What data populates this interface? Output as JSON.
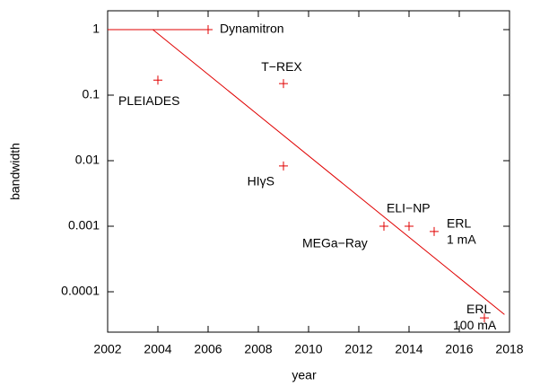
{
  "chart_data": {
    "type": "scatter",
    "x_label": "year",
    "y_label": "bandwidth",
    "log_y": true,
    "color": "#e00000",
    "xlim": [
      2002,
      2018
    ],
    "xticks": [
      2002,
      2004,
      2006,
      2008,
      2010,
      2012,
      2014,
      2016,
      2018
    ],
    "ylim": [
      2.42e-05,
      1.94
    ],
    "yticks": [
      1,
      0.1,
      0.01,
      0.001,
      0.0001
    ],
    "x": [
      2006,
      2004,
      2009,
      2009,
      2013,
      2014,
      2015,
      2017
    ],
    "values": [
      1,
      0.17,
      0.15,
      0.0083,
      0.001,
      0.001,
      0.00083,
      4e-05
    ],
    "labels": [
      [
        "Dynamitron"
      ],
      [
        "PLEIADES"
      ],
      [
        "T−REX"
      ],
      [
        "HIγS"
      ],
      [
        "MEGa−Ray"
      ],
      [
        "ELI−NP"
      ],
      [
        "ERL",
        "1 mA"
      ],
      [
        "ERL",
        "100 mA"
      ]
    ],
    "lines": [
      {
        "x": [
          2002,
          2006
        ],
        "values": [
          1,
          1
        ]
      },
      {
        "x": [
          2003.8,
          2017.8
        ],
        "values": [
          1,
          4.5e-05
        ]
      }
    ]
  }
}
